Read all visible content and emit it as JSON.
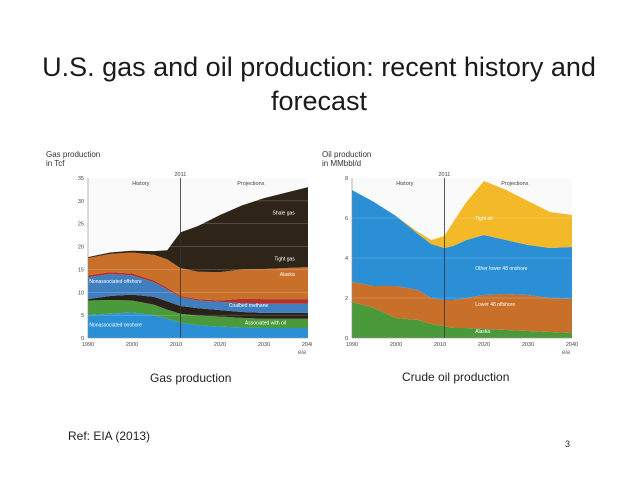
{
  "slide": {
    "title": "U.S. gas and oil production: recent history and forecast",
    "ref": "Ref: EIA (2013)",
    "page_number": "3",
    "gas_caption": "Gas production",
    "oil_caption": "Crude oil production"
  },
  "chart_data": [
    {
      "id": "gas",
      "type": "area",
      "stacked": true,
      "ylabel": "Gas production\nin Tcf",
      "xlim": [
        1990,
        2040
      ],
      "ylim": [
        0,
        35
      ],
      "x_ticks": [
        1990,
        2000,
        2010,
        2020,
        2030,
        2040
      ],
      "y_ticks": [
        0,
        5,
        10,
        15,
        20,
        25,
        30,
        35
      ],
      "divider_year": 2011,
      "period_labels": {
        "history": "History",
        "divider": "2011",
        "projections": "Projections"
      },
      "logo": "eia",
      "grid": true,
      "x": [
        1990,
        1995,
        2000,
        2005,
        2008,
        2011,
        2015,
        2020,
        2025,
        2030,
        2035,
        2040
      ],
      "series": [
        {
          "name": "Nonassociated onshore",
          "color": "#2b8fd6",
          "values": [
            5.0,
            5.3,
            5.6,
            5.0,
            4.2,
            3.4,
            2.8,
            2.5,
            2.3,
            2.2,
            2.2,
            2.2
          ]
        },
        {
          "name": "Associated with oil",
          "color": "#4a9a3b",
          "values": [
            3.2,
            3.0,
            2.6,
            2.3,
            2.0,
            1.9,
            2.1,
            2.2,
            2.1,
            2.0,
            2.0,
            2.0
          ]
        },
        {
          "name": "Coalbed methane",
          "color": "#2a2118",
          "values": [
            0.3,
            0.9,
            1.3,
            1.7,
            1.8,
            1.7,
            1.6,
            1.4,
            1.3,
            1.3,
            1.3,
            1.3
          ]
        },
        {
          "name": "Nonassociated offshore",
          "color": "#3f7fbf",
          "values": [
            4.8,
            4.8,
            4.2,
            3.2,
            2.6,
            1.9,
            1.7,
            1.8,
            1.9,
            2.0,
            2.0,
            2.0
          ]
        },
        {
          "name": "Alaska",
          "color": "#b3312a",
          "values": [
            0.4,
            0.4,
            0.4,
            0.4,
            0.4,
            0.3,
            0.3,
            0.3,
            1.0,
            1.0,
            1.0,
            1.0
          ]
        },
        {
          "name": "Tight gas",
          "color": "#c8702a",
          "values": [
            3.8,
            4.0,
            4.6,
            5.6,
            6.2,
            6.1,
            6.0,
            6.2,
            6.4,
            6.6,
            6.8,
            7.0
          ]
        },
        {
          "name": "Shale gas",
          "color": "#2e2418",
          "values": [
            0.2,
            0.3,
            0.4,
            0.8,
            2.0,
            7.8,
            10.0,
            12.5,
            14.0,
            15.5,
            16.5,
            17.5
          ]
        }
      ]
    },
    {
      "id": "oil",
      "type": "area",
      "stacked": true,
      "ylabel": "Oil production\nin MMbbl/d",
      "xlim": [
        1990,
        2040
      ],
      "ylim": [
        0,
        8
      ],
      "x_ticks": [
        1990,
        2000,
        2010,
        2020,
        2030,
        2040
      ],
      "y_ticks": [
        0,
        2,
        4,
        6,
        8
      ],
      "divider_year": 2011,
      "period_labels": {
        "history": "History",
        "divider": "2011",
        "projections": "Projections"
      },
      "logo": "eia",
      "grid": true,
      "x": [
        1990,
        1995,
        2000,
        2005,
        2008,
        2011,
        2013,
        2016,
        2020,
        2025,
        2030,
        2035,
        2040
      ],
      "series": [
        {
          "name": "Alaska",
          "color": "#4a9a3b",
          "values": [
            1.8,
            1.5,
            1.0,
            0.9,
            0.7,
            0.6,
            0.5,
            0.5,
            0.45,
            0.4,
            0.35,
            0.3,
            0.25
          ]
        },
        {
          "name": "Lower 48 offshore",
          "color": "#c8702a",
          "values": [
            1.0,
            1.1,
            1.6,
            1.5,
            1.3,
            1.3,
            1.4,
            1.5,
            1.7,
            1.8,
            1.8,
            1.7,
            1.7
          ]
        },
        {
          "name": "Other lower 48 onshore",
          "color": "#2b8fd6",
          "values": [
            4.6,
            4.2,
            3.5,
            2.8,
            2.7,
            2.6,
            2.7,
            2.9,
            3.0,
            2.7,
            2.5,
            2.5,
            2.6
          ]
        },
        {
          "name": "Tight oil",
          "color": "#f3b928",
          "values": [
            0.0,
            0.0,
            0.0,
            0.1,
            0.2,
            0.6,
            1.2,
            1.9,
            2.7,
            2.5,
            2.2,
            1.8,
            1.6
          ]
        }
      ]
    }
  ]
}
